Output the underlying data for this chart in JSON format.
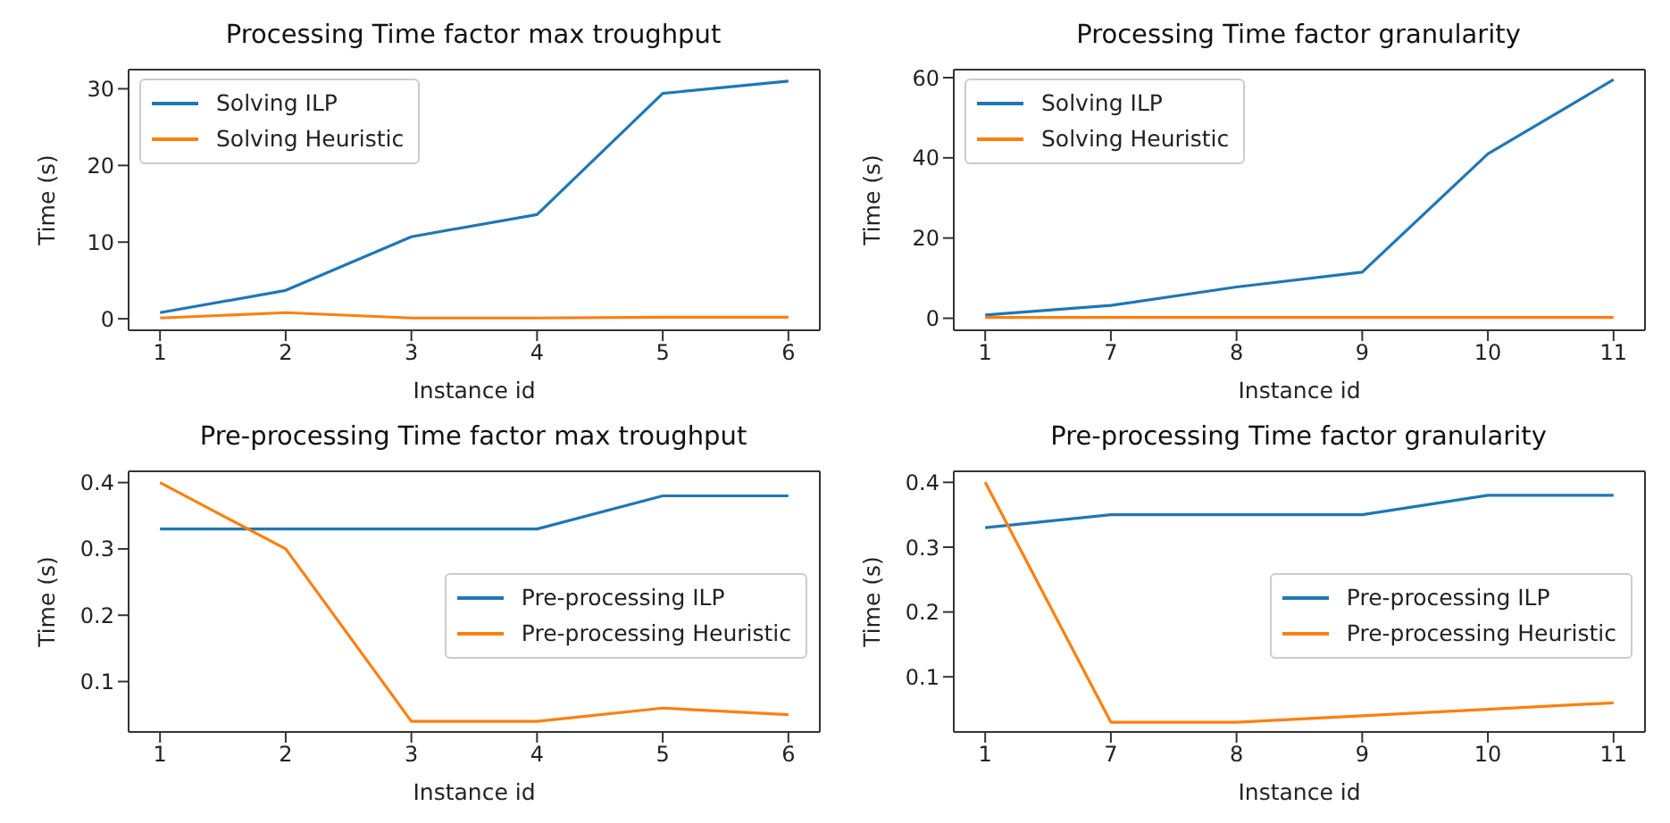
{
  "chart_data": [
    {
      "type": "line",
      "title": "Processing Time factor max troughput",
      "xlabel": "Instance id",
      "ylabel": "Time (s)",
      "categories": [
        "1",
        "2",
        "3",
        "4",
        "5",
        "6"
      ],
      "ylim": [
        -1.5,
        32.5
      ],
      "yticks": [
        0,
        10,
        20,
        30
      ],
      "legend": "top left",
      "grid": false,
      "series": [
        {
          "name": "Solving ILP",
          "color": "#1f77b4",
          "values": [
            0.8,
            3.7,
            10.7,
            13.6,
            29.4,
            31
          ]
        },
        {
          "name": "Solving Heuristic",
          "color": "#ff7f0e",
          "values": [
            0.1,
            0.8,
            0.1,
            0.1,
            0.2,
            0.2
          ]
        }
      ]
    },
    {
      "type": "line",
      "title": "Processing Time factor granularity",
      "xlabel": "Instance id",
      "ylabel": "Time (s)",
      "categories": [
        "1",
        "7",
        "8",
        "9",
        "10",
        "11"
      ],
      "ylim": [
        -3,
        62
      ],
      "yticks": [
        0,
        20,
        40,
        60
      ],
      "legend": "top left",
      "grid": false,
      "series": [
        {
          "name": "Solving ILP",
          "color": "#1f77b4",
          "values": [
            0.8,
            3.2,
            7.8,
            11.5,
            41,
            59.5
          ]
        },
        {
          "name": "Solving Heuristic",
          "color": "#ff7f0e",
          "values": [
            0.2,
            0.2,
            0.2,
            0.2,
            0.2,
            0.2
          ]
        }
      ]
    },
    {
      "type": "line",
      "title": "Pre-processing Time factor max troughput",
      "xlabel": "Instance id",
      "ylabel": "Time (s)",
      "categories": [
        "1",
        "2",
        "3",
        "4",
        "5",
        "6"
      ],
      "ylim": [
        0.024,
        0.417
      ],
      "yticks": [
        0.1,
        0.2,
        0.3,
        0.4
      ],
      "legend": "right",
      "grid": false,
      "series": [
        {
          "name": "Pre-processing ILP",
          "color": "#1f77b4",
          "values": [
            0.33,
            0.33,
            0.33,
            0.33,
            0.38,
            0.38
          ]
        },
        {
          "name": "Pre-processing Heuristic",
          "color": "#ff7f0e",
          "values": [
            0.4,
            0.3,
            0.04,
            0.04,
            0.06,
            0.05
          ]
        }
      ]
    },
    {
      "type": "line",
      "title": "Pre-processing Time factor granularity",
      "xlabel": "Instance id",
      "ylabel": "Time (s)",
      "categories": [
        "1",
        "7",
        "8",
        "9",
        "10",
        "11"
      ],
      "ylim": [
        0.015,
        0.417
      ],
      "yticks": [
        0.1,
        0.2,
        0.3,
        0.4
      ],
      "legend": "right",
      "grid": false,
      "series": [
        {
          "name": "Pre-processing ILP",
          "color": "#1f77b4",
          "values": [
            0.33,
            0.35,
            0.35,
            0.35,
            0.38,
            0.38
          ]
        },
        {
          "name": "Pre-processing Heuristic",
          "color": "#ff7f0e",
          "values": [
            0.4,
            0.03,
            0.03,
            0.04,
            0.05,
            0.06
          ]
        }
      ]
    }
  ]
}
